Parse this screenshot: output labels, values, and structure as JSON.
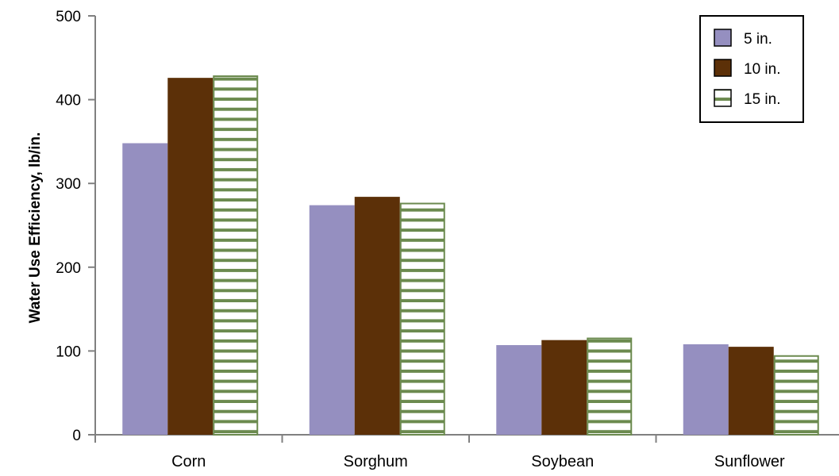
{
  "chart_data": {
    "type": "bar",
    "title": "",
    "xlabel": "",
    "ylabel": "Water Use Efficiency, lb/in.",
    "ylim": [
      0,
      500
    ],
    "yticks": [
      0,
      100,
      200,
      300,
      400,
      500
    ],
    "categories": [
      "Corn",
      "Sorghum",
      "Soybean",
      "Sunflower"
    ],
    "series": [
      {
        "name": "5 in.",
        "values": [
          348,
          274,
          107,
          108
        ],
        "color": "#958fc0",
        "pattern": "solid"
      },
      {
        "name": "10 in.",
        "values": [
          426,
          284,
          113,
          105
        ],
        "color": "#5c3008",
        "pattern": "solid"
      },
      {
        "name": "15 in.",
        "values": [
          428,
          276,
          115,
          94
        ],
        "color": "#6b8a4e",
        "pattern": "horizontal-stripes"
      }
    ],
    "grid": false,
    "legend_position": "top-right"
  }
}
